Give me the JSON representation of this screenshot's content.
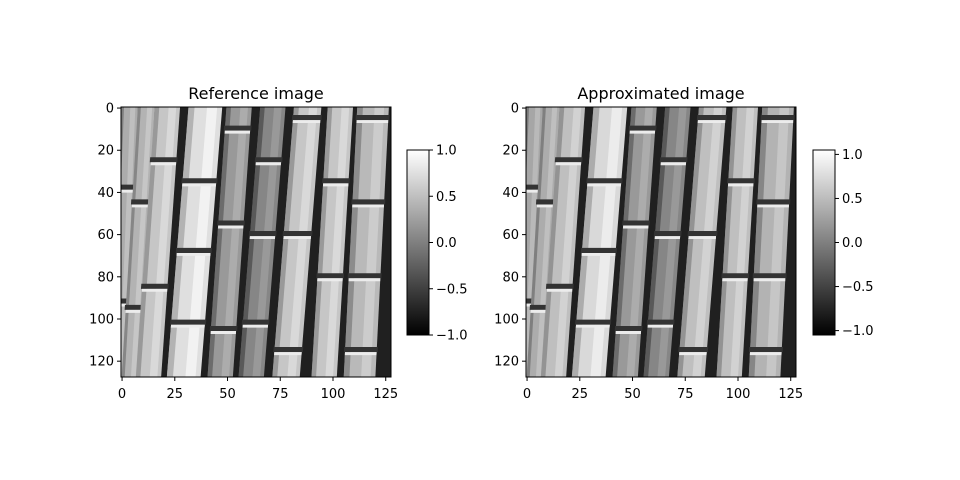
{
  "chart_data": [
    {
      "type": "heatmap",
      "title": "Reference image",
      "xlabel": "",
      "ylabel": "",
      "xlim": [
        0,
        128
      ],
      "ylim": [
        128,
        0
      ],
      "xticks": [
        "0",
        "25",
        "50",
        "75",
        "100",
        "125"
      ],
      "yticks": [
        "0",
        "20",
        "40",
        "60",
        "80",
        "100",
        "120"
      ],
      "colormap": "gray",
      "colorbar": {
        "vmin": -1.0,
        "vmax": 1.0,
        "ticks": [
          "1.0",
          "0.5",
          "0.0",
          "−0.5",
          "−1.0"
        ]
      },
      "stalks": [
        {
          "x0": 0,
          "x1": 8,
          "tilt": 0.04,
          "nodes": [
            38,
            92
          ],
          "brightness": 0.35
        },
        {
          "x0": 8,
          "x1": 16,
          "tilt": 0.06,
          "nodes": [
            45,
            95
          ],
          "brightness": 0.4
        },
        {
          "x0": 16,
          "x1": 28,
          "tilt": 0.07,
          "nodes": [
            25,
            85
          ],
          "brightness": 0.55
        },
        {
          "x0": 32,
          "x1": 48,
          "tilt": 0.08,
          "nodes": [
            35,
            68,
            102
          ],
          "brightness": 0.75
        },
        {
          "x0": 50,
          "x1": 62,
          "tilt": 0.07,
          "nodes": [
            10,
            55,
            105
          ],
          "brightness": 0.2
        },
        {
          "x0": 66,
          "x1": 78,
          "tilt": 0.08,
          "nodes": [
            25,
            60,
            102
          ],
          "brightness": 0.05
        },
        {
          "x0": 82,
          "x1": 95,
          "tilt": 0.08,
          "nodes": [
            5,
            60,
            115
          ],
          "brightness": 0.55
        },
        {
          "x0": 98,
          "x1": 110,
          "tilt": 0.06,
          "nodes": [
            35,
            80
          ],
          "brightness": 0.55
        },
        {
          "x0": 112,
          "x1": 127,
          "tilt": 0.05,
          "nodes": [
            5,
            45,
            80,
            115
          ],
          "brightness": 0.45
        }
      ]
    },
    {
      "type": "heatmap",
      "title": "Approximated image",
      "xlabel": "",
      "ylabel": "",
      "xlim": [
        0,
        128
      ],
      "ylim": [
        128,
        0
      ],
      "xticks": [
        "0",
        "25",
        "50",
        "75",
        "100",
        "125"
      ],
      "yticks": [
        "0",
        "20",
        "40",
        "60",
        "80",
        "100",
        "120"
      ],
      "colormap": "gray",
      "colorbar": {
        "vmin": -1.05,
        "vmax": 1.05,
        "ticks": [
          "1.0",
          "0.5",
          "0.0",
          "−0.5",
          "−1.0"
        ]
      },
      "stalks": [
        {
          "x0": 0,
          "x1": 8,
          "tilt": 0.04,
          "nodes": [
            38,
            92
          ],
          "brightness": 0.3
        },
        {
          "x0": 8,
          "x1": 16,
          "tilt": 0.06,
          "nodes": [
            45,
            95
          ],
          "brightness": 0.35
        },
        {
          "x0": 16,
          "x1": 28,
          "tilt": 0.07,
          "nodes": [
            25,
            85
          ],
          "brightness": 0.5
        },
        {
          "x0": 32,
          "x1": 48,
          "tilt": 0.08,
          "nodes": [
            35,
            68,
            102
          ],
          "brightness": 0.7
        },
        {
          "x0": 50,
          "x1": 62,
          "tilt": 0.07,
          "nodes": [
            10,
            55,
            105
          ],
          "brightness": 0.2
        },
        {
          "x0": 66,
          "x1": 78,
          "tilt": 0.08,
          "nodes": [
            25,
            60,
            102
          ],
          "brightness": 0.05
        },
        {
          "x0": 82,
          "x1": 95,
          "tilt": 0.08,
          "nodes": [
            5,
            60,
            115
          ],
          "brightness": 0.5
        },
        {
          "x0": 98,
          "x1": 110,
          "tilt": 0.06,
          "nodes": [
            35,
            80
          ],
          "brightness": 0.5
        },
        {
          "x0": 112,
          "x1": 127,
          "tilt": 0.05,
          "nodes": [
            5,
            45,
            80,
            115
          ],
          "brightness": 0.4
        }
      ]
    }
  ]
}
